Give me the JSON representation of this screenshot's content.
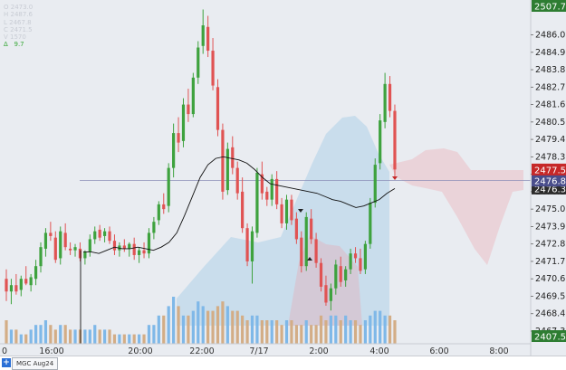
{
  "ohlc": {
    "o": "O 2473.0",
    "h": "H 2487.6",
    "l": "L 2467.8",
    "c": "C 2471.5",
    "v": "V 1570",
    "delta_label": "Δ",
    "delta_value": "9.7"
  },
  "price_axis": {
    "top_box": "2507.7",
    "bottom_box": "2407.5",
    "last_price": "2477.5",
    "mark_price": "2476.8",
    "cloud_price": "2476.3",
    "ticks": [
      2486.0,
      2484.9,
      2483.8,
      2482.7,
      2481.6,
      2480.5,
      2479.4,
      2478.3,
      2477.2,
      2476.1,
      2475.0,
      2473.9,
      2472.8,
      2471.7,
      2470.6,
      2469.5,
      2468.4,
      2467.3
    ],
    "ymin": 2466.5,
    "ymax": 2488.2,
    "colors": {
      "top_box": "#2e7d32",
      "bottom_box": "#2e7d32",
      "last_price": "#c62828",
      "mark_price": "#4a4e8c",
      "cloud_price": "#2b2b2b"
    }
  },
  "time_axis": {
    "labels": [
      "0",
      "16:00",
      "20:00",
      "22:00",
      "7/17",
      "2:00",
      "4:00",
      "6:00",
      "8:00"
    ]
  },
  "bottom_bar": {
    "add_icon": "+",
    "tab_label": "MGC Aug24"
  },
  "chart_data": {
    "type": "candlestick",
    "ylim": [
      2466.5,
      2488.2
    ],
    "colors": {
      "up": "#3ea23e",
      "down": "#e05353",
      "volume_up": "#7fb8e8",
      "volume_down": "#d3ad86",
      "sma": "#111111",
      "cloud_fill": "rgba(236,160,168,0.32)",
      "cloud_fill_blue": "rgba(150,196,230,0.38)",
      "ref_line": "#8c8fb8"
    },
    "candles": [
      [
        2470.6,
        2471.2,
        2469.2,
        2469.8
      ],
      [
        2469.8,
        2470.6,
        2469.0,
        2470.2
      ],
      [
        2470.2,
        2470.9,
        2469.6,
        2469.8
      ],
      [
        2469.9,
        2470.8,
        2469.5,
        2470.6
      ],
      [
        2470.6,
        2471.4,
        2470.2,
        2470.3
      ],
      [
        2470.2,
        2470.9,
        2469.8,
        2470.7
      ],
      [
        2470.6,
        2471.8,
        2470.2,
        2471.4
      ],
      [
        2471.4,
        2472.9,
        2471.0,
        2472.6
      ],
      [
        2472.5,
        2473.8,
        2472.0,
        2473.5
      ],
      [
        2473.5,
        2474.2,
        2473.0,
        2473.3
      ],
      [
        2473.2,
        2473.6,
        2471.6,
        2471.8
      ],
      [
        2471.9,
        2473.9,
        2471.5,
        2473.6
      ],
      [
        2473.5,
        2474.1,
        2472.4,
        2472.6
      ],
      [
        2472.5,
        2472.9,
        2472.1,
        2472.4
      ],
      [
        2472.4,
        2472.8,
        2472.0,
        2472.6
      ],
      [
        2472.5,
        2472.9,
        2471.7,
        2471.9
      ],
      [
        2471.9,
        2472.4,
        2471.5,
        2472.3
      ],
      [
        2472.3,
        2473.4,
        2472.0,
        2473.1
      ],
      [
        2473.1,
        2473.9,
        2472.8,
        2473.6
      ],
      [
        2473.7,
        2474.0,
        2473.0,
        2473.2
      ],
      [
        2473.3,
        2473.8,
        2472.9,
        2473.6
      ],
      [
        2473.6,
        2473.9,
        2472.8,
        2473.0
      ],
      [
        2473.0,
        2473.4,
        2472.1,
        2472.4
      ],
      [
        2472.4,
        2472.9,
        2472.0,
        2472.7
      ],
      [
        2472.7,
        2473.1,
        2472.3,
        2472.5
      ],
      [
        2472.5,
        2472.9,
        2472.0,
        2472.8
      ],
      [
        2472.8,
        2473.2,
        2471.8,
        2472.1
      ],
      [
        2472.1,
        2472.6,
        2471.6,
        2472.4
      ],
      [
        2472.4,
        2472.9,
        2471.9,
        2472.2
      ],
      [
        2472.2,
        2473.8,
        2471.9,
        2473.5
      ],
      [
        2473.5,
        2474.5,
        2473.1,
        2474.2
      ],
      [
        2474.3,
        2475.5,
        2474.0,
        2475.3
      ],
      [
        2475.3,
        2476.0,
        2474.7,
        2475.0
      ],
      [
        2475.2,
        2477.9,
        2474.8,
        2477.6
      ],
      [
        2477.6,
        2480.4,
        2477.0,
        2479.8
      ],
      [
        2479.8,
        2480.8,
        2478.6,
        2479.2
      ],
      [
        2479.3,
        2482.0,
        2478.9,
        2481.6
      ],
      [
        2481.6,
        2482.6,
        2480.5,
        2481.0
      ],
      [
        2481.0,
        2483.6,
        2480.8,
        2483.3
      ],
      [
        2483.3,
        2485.6,
        2482.9,
        2485.2
      ],
      [
        2485.3,
        2487.6,
        2484.8,
        2486.6
      ],
      [
        2486.5,
        2487.2,
        2484.6,
        2485.0
      ],
      [
        2485.0,
        2485.8,
        2482.5,
        2482.8
      ],
      [
        2482.7,
        2483.2,
        2479.6,
        2480.0
      ],
      [
        2480.0,
        2480.4,
        2475.6,
        2476.1
      ],
      [
        2476.2,
        2479.2,
        2475.9,
        2478.8
      ],
      [
        2478.9,
        2479.6,
        2477.2,
        2477.6
      ],
      [
        2477.6,
        2478.0,
        2475.6,
        2476.0
      ],
      [
        2476.1,
        2477.0,
        2473.5,
        2473.8
      ],
      [
        2473.8,
        2474.1,
        2471.4,
        2471.7
      ],
      [
        2471.7,
        2473.9,
        2470.3,
        2473.6
      ],
      [
        2473.5,
        2477.6,
        2473.2,
        2477.3
      ],
      [
        2477.2,
        2478.0,
        2475.6,
        2476.0
      ],
      [
        2476.1,
        2476.4,
        2475.2,
        2475.6
      ],
      [
        2475.6,
        2477.2,
        2475.2,
        2476.9
      ],
      [
        2476.9,
        2477.4,
        2475.0,
        2475.3
      ],
      [
        2475.3,
        2475.7,
        2473.8,
        2474.1
      ],
      [
        2474.1,
        2475.9,
        2473.7,
        2475.6
      ],
      [
        2475.6,
        2475.9,
        2474.0,
        2474.3
      ],
      [
        2474.4,
        2474.8,
        2472.8,
        2473.1
      ],
      [
        2473.2,
        2473.6,
        2471.0,
        2471.4
      ],
      [
        2471.4,
        2474.8,
        2471.1,
        2474.5
      ],
      [
        2474.4,
        2475.0,
        2472.8,
        2473.1
      ],
      [
        2473.1,
        2473.5,
        2471.3,
        2471.6
      ],
      [
        2471.6,
        2471.9,
        2469.8,
        2470.1
      ],
      [
        2470.2,
        2470.8,
        2468.9,
        2469.1
      ],
      [
        2469.2,
        2470.3,
        2468.6,
        2470.0
      ],
      [
        2470.0,
        2471.8,
        2469.6,
        2471.5
      ],
      [
        2471.4,
        2472.0,
        2470.1,
        2470.4
      ],
      [
        2470.5,
        2471.4,
        2470.1,
        2471.2
      ],
      [
        2471.2,
        2472.5,
        2470.9,
        2472.2
      ],
      [
        2472.2,
        2472.6,
        2471.6,
        2471.9
      ],
      [
        2471.9,
        2472.5,
        2470.9,
        2471.1
      ],
      [
        2471.2,
        2473.0,
        2470.9,
        2472.8
      ],
      [
        2472.8,
        2475.7,
        2472.5,
        2475.4
      ],
      [
        2475.4,
        2478.2,
        2475.1,
        2477.8
      ],
      [
        2477.9,
        2481.0,
        2477.5,
        2480.6
      ],
      [
        2480.5,
        2483.6,
        2480.1,
        2482.9
      ],
      [
        2482.9,
        2483.4,
        2480.8,
        2481.2
      ],
      [
        2481.2,
        2481.6,
        2477.0,
        2477.5
      ]
    ],
    "volumes": [
      5,
      3,
      3,
      2,
      2,
      3,
      4,
      4,
      5,
      4,
      3,
      4,
      4,
      3,
      3,
      3,
      3,
      3,
      4,
      3,
      3,
      3,
      2,
      2,
      2,
      2,
      2,
      2,
      2,
      4,
      4,
      6,
      6,
      8,
      10,
      8,
      6,
      6,
      7,
      9,
      8,
      7,
      7,
      8,
      9,
      8,
      7,
      7,
      6,
      5,
      6,
      6,
      5,
      5,
      5,
      5,
      4,
      5,
      5,
      4,
      4,
      5,
      4,
      4,
      6,
      5,
      6,
      6,
      5,
      6,
      5,
      5,
      4,
      5,
      6,
      7,
      7,
      6,
      6,
      5
    ],
    "sma": [
      2472.3,
      2472.3,
      2472.2,
      2472.4,
      2472.6,
      2472.5,
      2472.5,
      2472.6,
      2472.5,
      2472.4,
      2472.6,
      2472.9,
      2473.5,
      2474.6,
      2475.8,
      2477.0,
      2477.8,
      2478.2,
      2478.3,
      2478.2,
      2478.1,
      2477.9,
      2477.5,
      2477.0,
      2476.6,
      2476.5,
      2476.4,
      2476.3,
      2476.2,
      2476.1,
      2476.0,
      2475.8,
      2475.6,
      2475.5,
      2475.3,
      2475.1,
      2475.2,
      2475.4,
      2475.6,
      2476.0,
      2476.3
    ]
  }
}
